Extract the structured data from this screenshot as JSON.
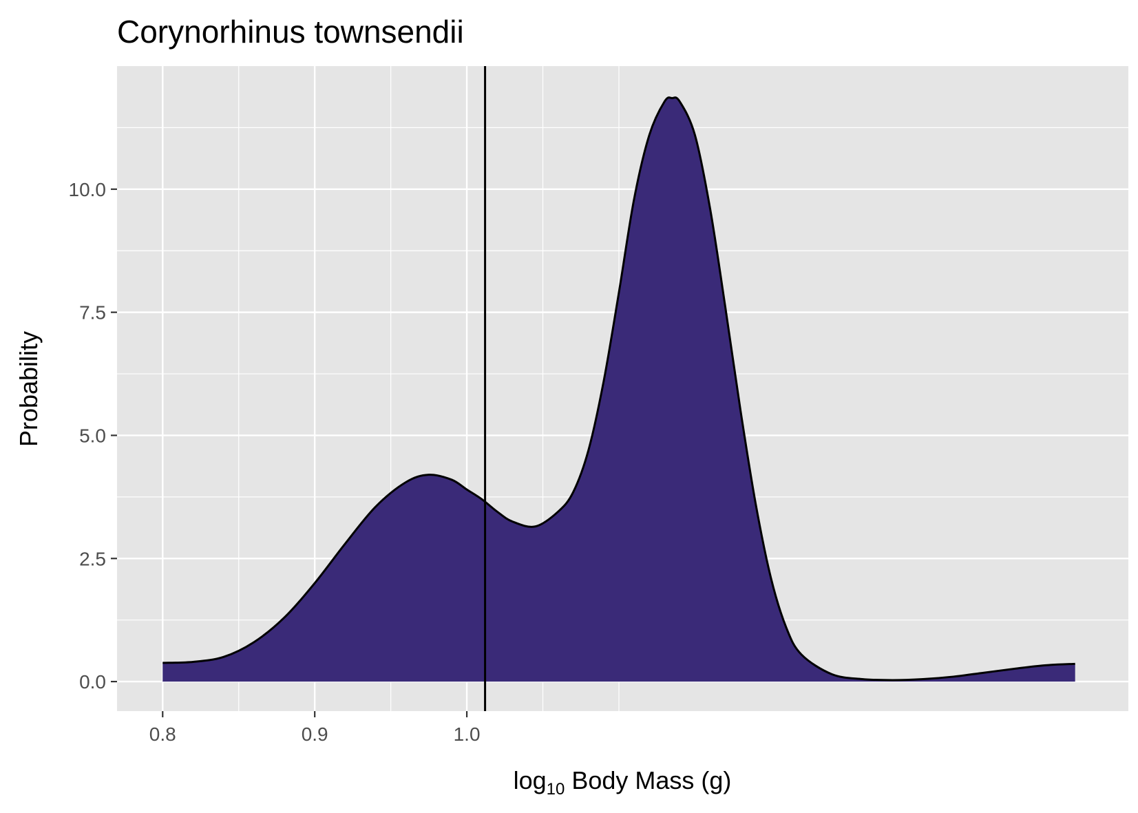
{
  "chart_data": {
    "type": "area",
    "title": "Corynorhinus townsendii",
    "xlabel": "log₁₀ Body Mass (g)",
    "xlabel_parts": {
      "prefix": "log",
      "subscript": "10",
      "suffix": " Body Mass (g)"
    },
    "ylabel": "Probability",
    "xlim": [
      0.77,
      1.435
    ],
    "ylim": [
      -0.6,
      12.5
    ],
    "x_ticks": [
      0.8,
      0.9,
      1.0
    ],
    "x_tick_labels": [
      "0.8",
      "0.9",
      "1.0"
    ],
    "x_minor_gridlines": [
      0.85,
      0.95,
      1.05,
      1.1
    ],
    "y_ticks": [
      0,
      2.5,
      5,
      7.5,
      10
    ],
    "y_tick_labels": [
      "0.0",
      "2.5",
      "5.0",
      "7.5",
      "10.0"
    ],
    "grid": true,
    "fill_color": "#3a2a78",
    "line_color": "#000000",
    "panel_color": "#e5e5e5",
    "vline_x": 1.012,
    "series": [
      {
        "x": [
          0.8,
          0.82,
          0.84,
          0.86,
          0.88,
          0.9,
          0.92,
          0.94,
          0.96,
          0.975,
          0.99,
          1.0,
          1.01,
          1.02,
          1.03,
          1.045,
          1.06,
          1.07,
          1.08,
          1.09,
          1.1,
          1.11,
          1.12,
          1.13,
          1.135,
          1.14,
          1.15,
          1.16,
          1.17,
          1.18,
          1.19,
          1.2,
          1.21,
          1.22,
          1.24,
          1.26,
          1.28,
          1.3,
          1.32,
          1.34,
          1.36,
          1.38,
          1.4
        ],
        "y": [
          0.38,
          0.4,
          0.5,
          0.8,
          1.3,
          2.0,
          2.8,
          3.55,
          4.05,
          4.2,
          4.1,
          3.9,
          3.7,
          3.45,
          3.25,
          3.15,
          3.45,
          3.85,
          4.7,
          6.1,
          7.9,
          9.8,
          11.1,
          11.78,
          11.85,
          11.78,
          11.1,
          9.6,
          7.6,
          5.5,
          3.6,
          2.1,
          1.1,
          0.55,
          0.15,
          0.05,
          0.03,
          0.05,
          0.1,
          0.18,
          0.26,
          0.33,
          0.36
        ]
      }
    ]
  }
}
